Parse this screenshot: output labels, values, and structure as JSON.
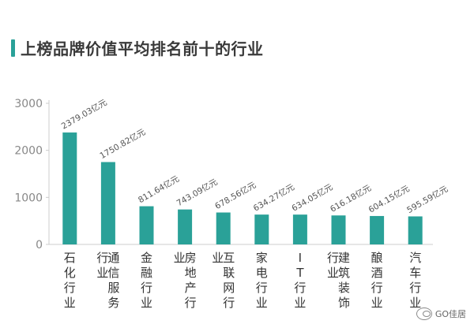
{
  "title": "上榜品牌价值平均排名前十的行业",
  "colors": {
    "bar": "#2aa198",
    "title_bar": "#2aa198",
    "axis": "#cccccc",
    "tick_text": "#888888",
    "label_text": "#555555"
  },
  "watermark": {
    "text": "GO佳居",
    "icon": "wechat-icon"
  },
  "chart_data": {
    "type": "bar",
    "title": "上榜品牌价值平均排名前十的行业",
    "xlabel": "",
    "ylabel": "",
    "ylim": [
      0,
      3000
    ],
    "yticks": [
      "0",
      "1000",
      "2000",
      "3000"
    ],
    "grid": false,
    "categories": [
      "石化行业",
      "通信服务行业",
      "金融行业",
      "房地产行业",
      "互联网行业",
      "家电行业",
      "IT行业",
      "建筑装饰行业",
      "酿酒行业",
      "汽车行业"
    ],
    "values": [
      2379.03,
      1750.82,
      811.64,
      743.09,
      678.56,
      634.27,
      634.05,
      616.18,
      604.15,
      595.59
    ],
    "data_labels": [
      "2379.03亿元",
      "1750.82亿元",
      "811.64亿元",
      "743.09亿元",
      "678.56亿元",
      "634.27亿元",
      "634.05亿元",
      "616.18亿元",
      "604.15亿元",
      "595.59亿元"
    ]
  }
}
